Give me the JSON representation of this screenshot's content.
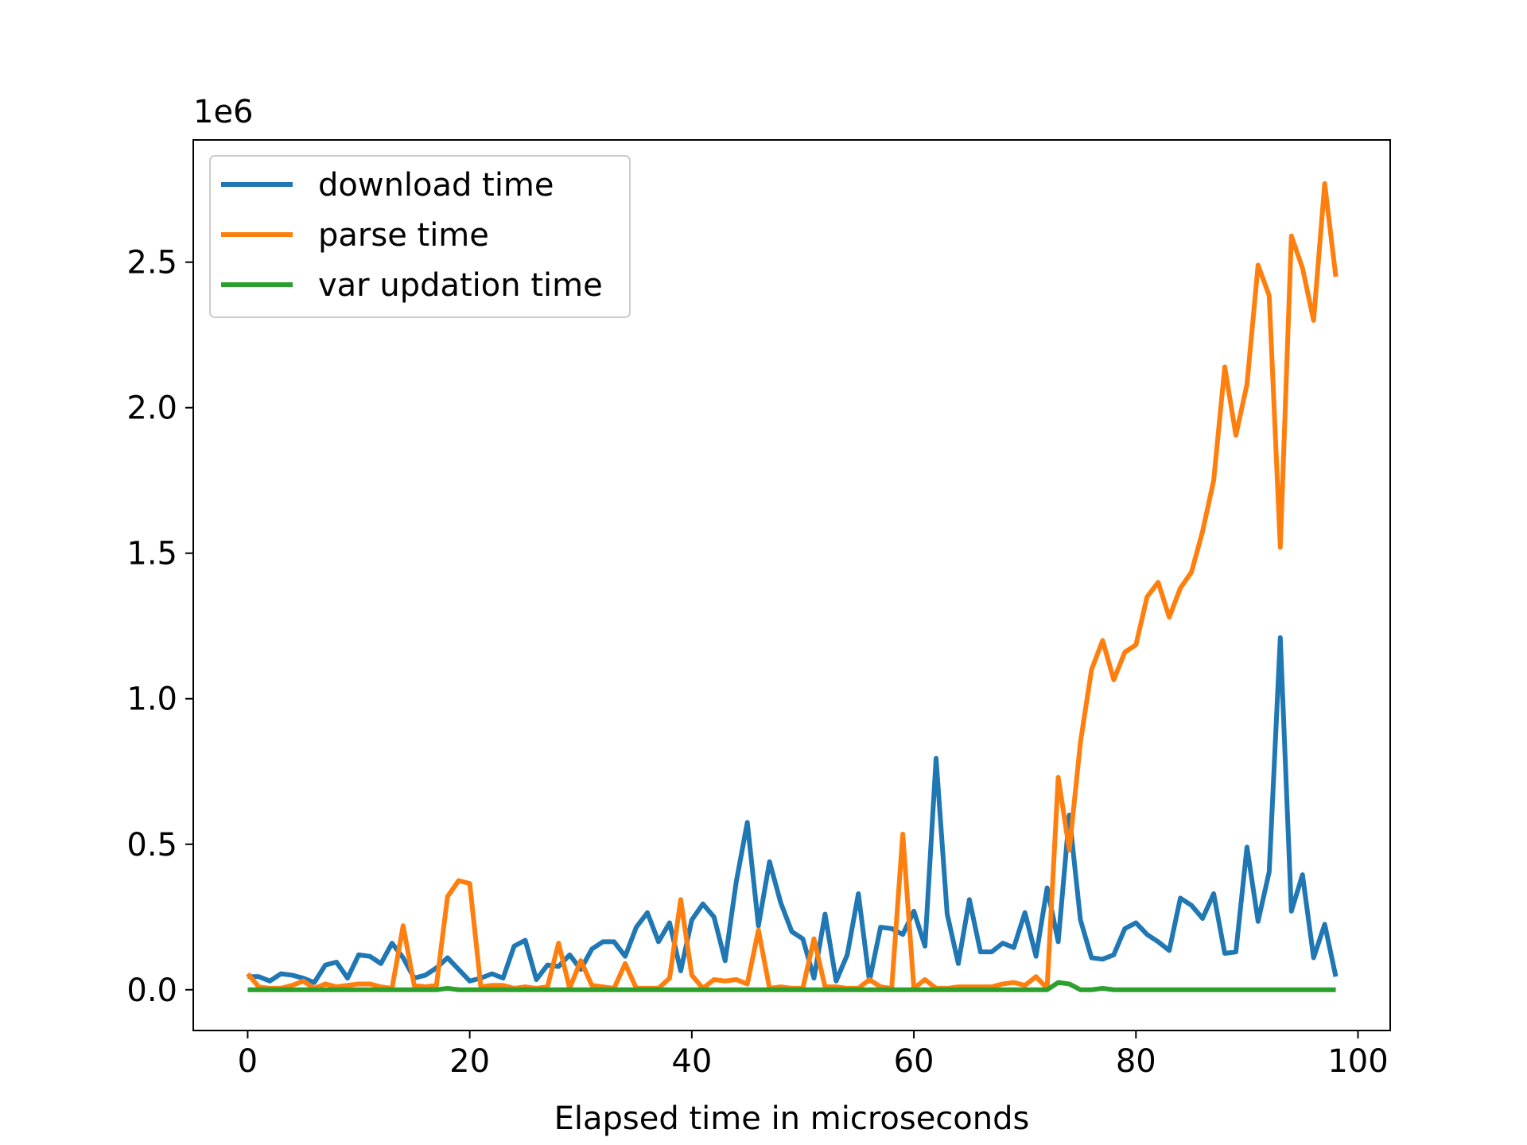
{
  "chart_data": {
    "type": "line",
    "title": "",
    "xlabel": "Elapsed time in microseconds",
    "ylabel": "",
    "y_offset_label": "1e6",
    "xlim": [
      -4.9,
      102.9
    ],
    "ylim": [
      -0.14,
      2.92
    ],
    "xticks": [
      0,
      20,
      40,
      60,
      80,
      100
    ],
    "xtick_labels": [
      "0",
      "20",
      "40",
      "60",
      "80",
      "100"
    ],
    "yticks": [
      0.0,
      0.5,
      1.0,
      1.5,
      2.0,
      2.5
    ],
    "ytick_labels": [
      "0.0",
      "0.5",
      "1.0",
      "1.5",
      "2.0",
      "2.5"
    ],
    "y_scale_note": "values in units of 1e6",
    "grid": false,
    "legend_position": "upper-left",
    "x": [
      0,
      1,
      2,
      3,
      4,
      5,
      6,
      7,
      8,
      9,
      10,
      11,
      12,
      13,
      14,
      15,
      16,
      17,
      18,
      19,
      20,
      21,
      22,
      23,
      24,
      25,
      26,
      27,
      28,
      29,
      30,
      31,
      32,
      33,
      34,
      35,
      36,
      37,
      38,
      39,
      40,
      41,
      42,
      43,
      44,
      45,
      46,
      47,
      48,
      49,
      50,
      51,
      52,
      53,
      54,
      55,
      56,
      57,
      58,
      59,
      60,
      61,
      62,
      63,
      64,
      65,
      66,
      67,
      68,
      69,
      70,
      71,
      72,
      73,
      74,
      75,
      76,
      77,
      78,
      79,
      80,
      81,
      82,
      83,
      84,
      85,
      86,
      87,
      88,
      89,
      90,
      91,
      92,
      93,
      94,
      95,
      96,
      97,
      98
    ],
    "series": [
      {
        "name": "download time",
        "color": "#1f77b4",
        "values": [
          0.045,
          0.045,
          0.03,
          0.055,
          0.05,
          0.04,
          0.025,
          0.085,
          0.095,
          0.04,
          0.12,
          0.115,
          0.09,
          0.16,
          0.11,
          0.04,
          0.05,
          0.075,
          0.11,
          0.07,
          0.03,
          0.04,
          0.055,
          0.04,
          0.15,
          0.17,
          0.035,
          0.085,
          0.08,
          0.12,
          0.07,
          0.14,
          0.165,
          0.165,
          0.115,
          0.215,
          0.265,
          0.165,
          0.23,
          0.065,
          0.24,
          0.295,
          0.25,
          0.1,
          0.37,
          0.575,
          0.22,
          0.44,
          0.3,
          0.2,
          0.175,
          0.04,
          0.26,
          0.03,
          0.12,
          0.33,
          0.03,
          0.215,
          0.21,
          0.19,
          0.27,
          0.15,
          0.795,
          0.26,
          0.09,
          0.31,
          0.13,
          0.13,
          0.16,
          0.145,
          0.265,
          0.115,
          0.35,
          0.165,
          0.6,
          0.24,
          0.11,
          0.105,
          0.12,
          0.21,
          0.23,
          0.19,
          0.165,
          0.135,
          0.315,
          0.29,
          0.245,
          0.33,
          0.125,
          0.13,
          0.49,
          0.235,
          0.405,
          1.21,
          0.27,
          0.395,
          0.11,
          0.225,
          0.045
        ]
      },
      {
        "name": "parse time",
        "color": "#ff7f0e",
        "values": [
          0.055,
          0.01,
          0.005,
          0.005,
          0.015,
          0.03,
          0.005,
          0.02,
          0.01,
          0.015,
          0.02,
          0.02,
          0.01,
          0.005,
          0.22,
          0.015,
          0.01,
          0.015,
          0.32,
          0.375,
          0.365,
          0.01,
          0.015,
          0.015,
          0.005,
          0.01,
          0.005,
          0.01,
          0.16,
          0.005,
          0.1,
          0.015,
          0.01,
          0.005,
          0.09,
          0.005,
          0.005,
          0.005,
          0.04,
          0.31,
          0.05,
          0.005,
          0.035,
          0.03,
          0.035,
          0.02,
          0.205,
          0.005,
          0.01,
          0.005,
          0.005,
          0.175,
          0.01,
          0.01,
          0.005,
          0.005,
          0.035,
          0.01,
          0.005,
          0.535,
          0.005,
          0.035,
          0.005,
          0.005,
          0.01,
          0.01,
          0.01,
          0.01,
          0.02,
          0.025,
          0.015,
          0.045,
          0.005,
          0.73,
          0.48,
          0.85,
          1.1,
          1.2,
          1.065,
          1.16,
          1.185,
          1.35,
          1.4,
          1.28,
          1.38,
          1.435,
          1.575,
          1.75,
          2.14,
          1.905,
          2.08,
          2.49,
          2.385,
          1.52,
          2.59,
          2.48,
          2.3,
          2.77,
          2.45
        ]
      },
      {
        "name": "var updation time",
        "color": "#2ca02c",
        "values": [
          0,
          0,
          0,
          0,
          0,
          0,
          0,
          0,
          0,
          0,
          0,
          0,
          0,
          0,
          0,
          0,
          0,
          0,
          0.005,
          0,
          0,
          0,
          0,
          0,
          0,
          0,
          0,
          0,
          0,
          0,
          0,
          0,
          0,
          0,
          0,
          0,
          0,
          0,
          0,
          0,
          0,
          0,
          0,
          0,
          0,
          0,
          0,
          0,
          0,
          0,
          0,
          0,
          0,
          0,
          0,
          0,
          0,
          0,
          0,
          0,
          0,
          0,
          0,
          0,
          0,
          0,
          0,
          0,
          0,
          0,
          0,
          0,
          0,
          0.025,
          0.02,
          0,
          0,
          0.005,
          0,
          0,
          0,
          0,
          0,
          0,
          0,
          0,
          0,
          0,
          0,
          0,
          0,
          0,
          0,
          0,
          0,
          0,
          0,
          0,
          0
        ]
      }
    ]
  }
}
